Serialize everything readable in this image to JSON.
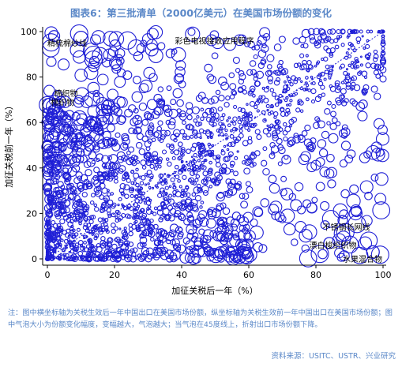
{
  "title": "图表6：第三批清单（2000亿美元）在美国市场份额的变化",
  "chart_data": {
    "type": "scatter",
    "title": "",
    "xlabel": "加征关税后一年（%）",
    "ylabel": "加征关税前一年（%）",
    "xlim": [
      0,
      100
    ],
    "ylim": [
      0,
      100
    ],
    "xticks": [
      0,
      20,
      40,
      60,
      80,
      100
    ],
    "yticks": [
      0,
      20,
      40,
      60,
      80,
      100
    ],
    "grid": false,
    "diagonal_line": true,
    "marker_color": "#1f1fd6",
    "annotations": [
      {
        "text": "彩色电视接收应用程序",
        "x": 38,
        "y": 96
      },
      {
        "text": "精梳棉纱线",
        "x": 0,
        "y": 95
      },
      {
        "text": "棉织物",
        "x": 2,
        "y": 73
      },
      {
        "text": "棉织物",
        "x": 1,
        "y": 69
      },
      {
        "text": "不锈钢长网线",
        "x": 82,
        "y": 14
      },
      {
        "text": "漂白梭织织物",
        "x": 78,
        "y": 6
      },
      {
        "text": "水果混合物",
        "x": 88,
        "y": 0
      }
    ],
    "highlight_points": [
      {
        "x": 2,
        "y": 98,
        "size": 7
      },
      {
        "x": 10,
        "y": 97,
        "size": 9
      },
      {
        "x": 14,
        "y": 87,
        "size": 6
      },
      {
        "x": 3,
        "y": 72,
        "size": 6
      },
      {
        "x": 4,
        "y": 69,
        "size": 7
      },
      {
        "x": 88,
        "y": 17,
        "size": 6
      },
      {
        "x": 84,
        "y": 7,
        "size": 7
      },
      {
        "x": 97,
        "y": 3,
        "size": 8
      }
    ]
  },
  "note": "注：图中横坐标轴为关税生效后一年中国出口在美国市场份额，纵坐标轴为关税生效前一年中国出口在美国市场份额；图中气泡大小为份额变化幅度，变幅越大，气泡越大；当气泡在45度线上，折射出口市场份额下降。",
  "source": "资料来源：USITC、USTR、兴业研究"
}
